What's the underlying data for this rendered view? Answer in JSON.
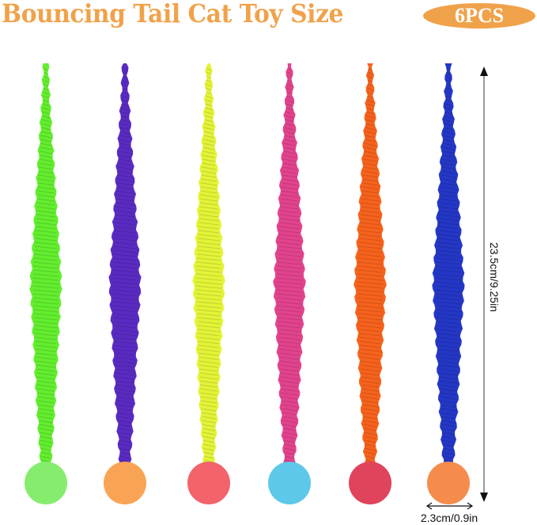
{
  "title": "Bouncing Tail Cat Toy Size",
  "badge": "6PCS",
  "colors": {
    "title": "#F0A24A",
    "badge": "#F0A24A"
  },
  "toys": [
    {
      "tail_color": "#63EE2E",
      "ball_color": "#86EC6E"
    },
    {
      "tail_color": "#5A2BC2",
      "ball_color": "#F9A455"
    },
    {
      "tail_color": "#E3F437",
      "ball_color": "#F2636C"
    },
    {
      "tail_color": "#E2438D",
      "ball_color": "#5EC8EA"
    },
    {
      "tail_color": "#F6621C",
      "ball_color": "#E0435C"
    },
    {
      "tail_color": "#2437C6",
      "ball_color": "#F68C4C"
    }
  ],
  "dimensions": {
    "length": "23.5cm/9.25in",
    "ball_diameter": "2.3cm/0.9in"
  }
}
